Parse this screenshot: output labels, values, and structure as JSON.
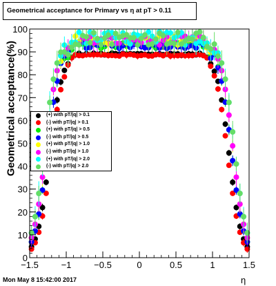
{
  "chart_data": {
    "type": "scatter",
    "title": "Geometrical acceptance for Primary vs   η at pT > 0.11",
    "xlabel": "η",
    "ylabel": "Geometrical acceptance(%)",
    "xlim": [
      -1.5,
      1.5
    ],
    "ylim": [
      0,
      100
    ],
    "x_ticks": [
      -1.5,
      -1,
      -0.5,
      0,
      0.5,
      1,
      1.5
    ],
    "x_tick_labels": [
      "−1.5",
      "−1",
      "−0.5",
      "0",
      "0.5",
      "1",
      "1.5"
    ],
    "y_ticks": [
      0,
      10,
      20,
      30,
      40,
      50,
      60,
      70,
      80,
      90,
      100
    ],
    "y_tick_labels": [
      "0",
      "10",
      "20",
      "30",
      "40",
      "50",
      "60",
      "70",
      "80",
      "90",
      "100"
    ],
    "grid": false,
    "legend_position": "middle-left",
    "series": [
      {
        "name": "(+) with pT/|q| > 0.1",
        "color": "#000000",
        "plateau": 89,
        "edge": 1.15,
        "scatter": 0.5,
        "err": 1.2
      },
      {
        "name": "(-) with pT/|q| > 0.1",
        "color": "#ff0000",
        "plateau": 88.6,
        "edge": 1.13,
        "scatter": 0.5,
        "err": 1.2
      },
      {
        "name": "(+) with pT/|q| > 0.5",
        "color": "#00ee00",
        "plateau": 93,
        "edge": 1.18,
        "scatter": 1.5,
        "err": 2.0
      },
      {
        "name": "(-) with pT/|q| > 0.5",
        "color": "#0000ff",
        "plateau": 93,
        "edge": 1.18,
        "scatter": 1.5,
        "err": 2.0
      },
      {
        "name": "(+) with pT/|q| > 1.0",
        "color": "#ffff00",
        "plateau": 95,
        "edge": 1.2,
        "scatter": 2.0,
        "err": 3.0
      },
      {
        "name": "(-) with pT/|q| > 1.0",
        "color": "#ff00ff",
        "plateau": 95,
        "edge": 1.2,
        "scatter": 2.0,
        "err": 3.0
      },
      {
        "name": "(+) with pT/|q| > 2.0",
        "color": "#00ffff",
        "plateau": 96,
        "edge": 1.22,
        "scatter": 3.0,
        "err": 4.0
      },
      {
        "name": "(-) with pT/|q| > 2.0",
        "color": "#66dd66",
        "plateau": 96,
        "edge": 1.22,
        "scatter": 3.0,
        "err": 4.0
      }
    ]
  },
  "footer": {
    "date": "Mon May  8 15:42:00 2017"
  }
}
